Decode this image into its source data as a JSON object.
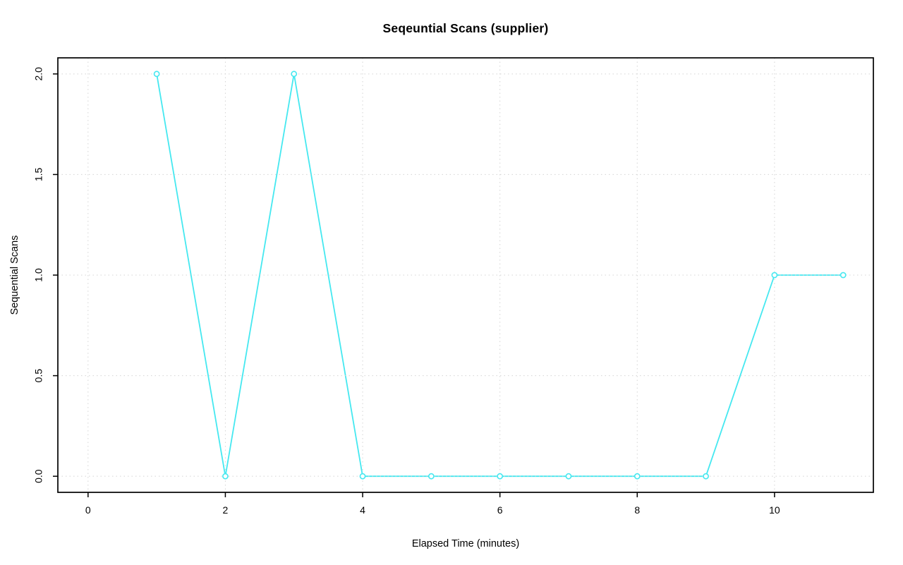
{
  "figure": {
    "background": "#ffffff",
    "text_color": "#000000"
  },
  "chart_data": {
    "type": "line",
    "title": "Seqeuntial Scans (supplier)",
    "xlabel": "Elapsed Time (minutes)",
    "ylabel": "Sequential Scans",
    "x": [
      1,
      2,
      3,
      4,
      5,
      6,
      7,
      8,
      9,
      10,
      11
    ],
    "y": [
      2,
      0,
      2,
      0,
      0,
      0,
      0,
      0,
      0,
      1,
      1
    ],
    "xlim": [
      0,
      11
    ],
    "ylim": [
      0,
      2
    ],
    "x_ticks": [
      0,
      2,
      4,
      6,
      8,
      10
    ],
    "x_tick_labels": [
      "0",
      "2",
      "4",
      "6",
      "8",
      "10"
    ],
    "y_ticks": [
      0,
      0.5,
      1,
      1.5,
      2
    ],
    "y_tick_labels": [
      "0.0",
      "0.5",
      "1.0",
      "1.5",
      "2.0"
    ],
    "series_color": "#45e8f0",
    "marker": "open-circle",
    "grid": {
      "show": true,
      "color": "#d4d4d4",
      "style": "dotted"
    },
    "axis_color": "#000000",
    "legend": "none"
  }
}
